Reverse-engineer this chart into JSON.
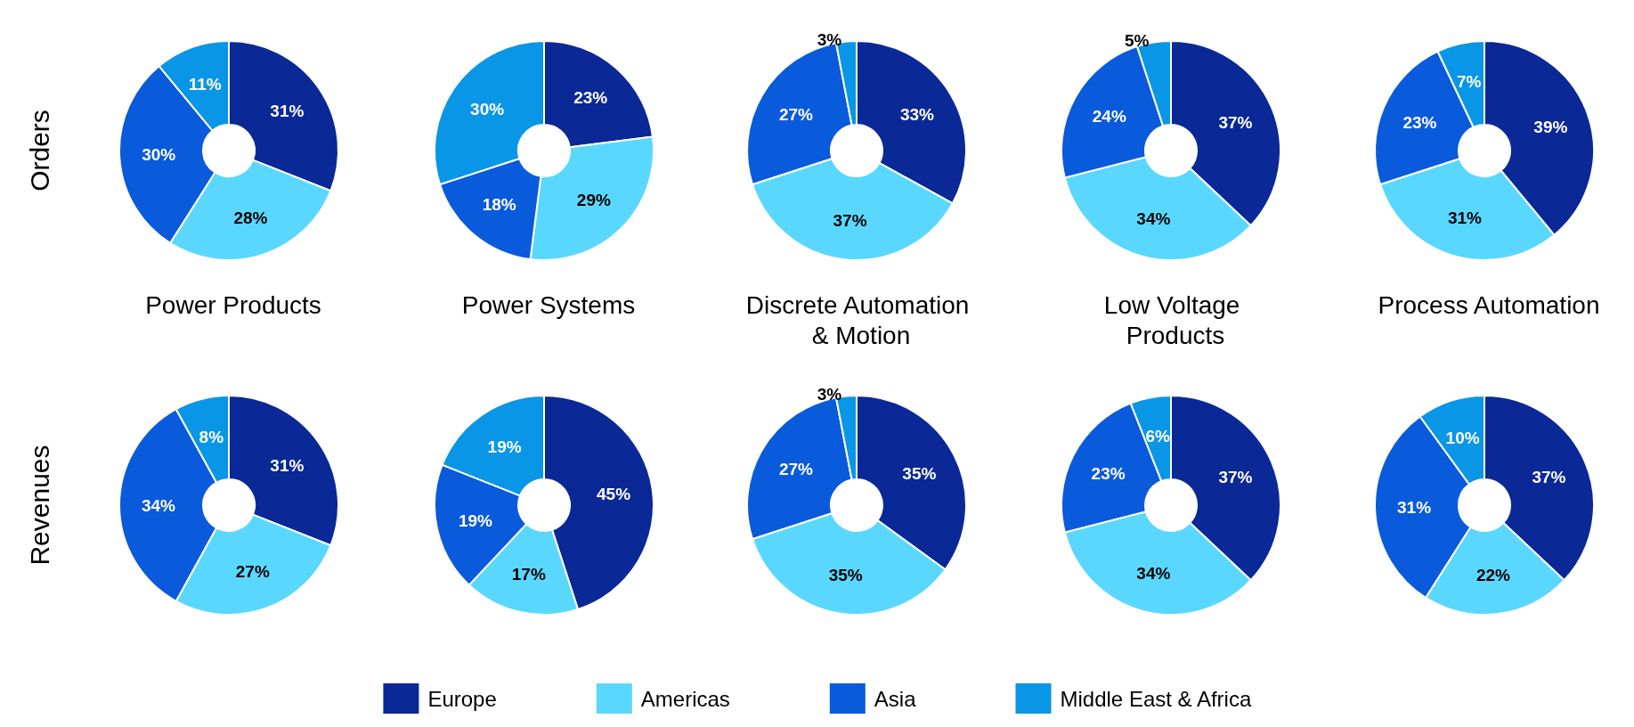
{
  "chart_data": [
    {
      "type": "donut",
      "title": "Power Products",
      "ylabel": "Orders",
      "categories": [
        "Europe",
        "Americas",
        "Asia",
        "Middle East & Africa"
      ],
      "values": [
        31,
        28,
        30,
        11
      ],
      "value_labels": [
        "31%",
        "28%",
        "30%",
        "11%"
      ],
      "colors": [
        "#0a2896",
        "#5ad7ff",
        "#0a5adc",
        "#0a96e6"
      ],
      "legend": "bottom"
    },
    {
      "type": "donut",
      "title": "Power Systems",
      "categories": [
        null,
        null,
        null,
        null
      ],
      "values": [
        23,
        29,
        18,
        30
      ],
      "value_labels": [
        "23%",
        "29%",
        "18%",
        "30%"
      ],
      "colors": [
        "#0a2896",
        "#5ad7ff",
        "#0a5adc",
        "#0a96e6"
      ]
    },
    {
      "type": "donut",
      "title": "Discrete Automation & Motion",
      "categories": [
        null,
        null,
        null,
        null
      ],
      "values": [
        33,
        37,
        27,
        3
      ],
      "value_labels": [
        "33%",
        "37%",
        "27%",
        "3%"
      ],
      "colors": [
        "#0a2896",
        "#5ad7ff",
        "#0a5adc",
        "#0a96e6"
      ]
    },
    {
      "type": "donut",
      "title": "Low Voltage Products",
      "categories": [
        null,
        null,
        null,
        null
      ],
      "values": [
        37,
        34,
        24,
        5
      ],
      "value_labels": [
        "37%",
        "34%",
        "24%",
        "5%"
      ],
      "colors": [
        "#0a2896",
        "#5ad7ff",
        "#0a5adc",
        "#0a96e6"
      ]
    },
    {
      "type": "donut",
      "title": "Process Automation",
      "categories": [
        null,
        null,
        null,
        null
      ],
      "values": [
        39,
        31,
        23,
        7
      ],
      "value_labels": [
        "39%",
        "31%",
        "23%",
        "7%"
      ],
      "colors": [
        "#0a2896",
        "#5ad7ff",
        "#0a5adc",
        "#0a96e6"
      ]
    },
    {
      "type": "donut",
      "ylabel": "Revenues",
      "categories": [
        null,
        null,
        null,
        null
      ],
      "values": [
        31,
        27,
        34,
        8
      ],
      "value_labels": [
        "31%",
        "27%",
        "34%",
        "8%"
      ],
      "colors": [
        "#0a2896",
        "#5ad7ff",
        "#0a5adc",
        "#0a96e6"
      ]
    },
    {
      "type": "donut",
      "categories": [
        null,
        null,
        null,
        null
      ],
      "values": [
        45,
        17,
        19,
        19
      ],
      "value_labels": [
        "45%",
        "17%",
        "19%",
        "19%"
      ],
      "colors": [
        "#0a2896",
        "#5ad7ff",
        "#0a5adc",
        "#0a96e6"
      ]
    },
    {
      "type": "donut",
      "categories": [
        null,
        null,
        null,
        null
      ],
      "values": [
        35,
        35,
        27,
        3
      ],
      "value_labels": [
        "35%",
        "35%",
        "27%",
        "3%"
      ],
      "colors": [
        "#0a2896",
        "#5ad7ff",
        "#0a5adc",
        "#0a96e6"
      ]
    },
    {
      "type": "donut",
      "categories": [
        null,
        null,
        null,
        null
      ],
      "values": [
        37,
        34,
        23,
        6
      ],
      "value_labels": [
        "37%",
        "34%",
        "23%",
        "6%"
      ],
      "colors": [
        "#0a2896",
        "#5ad7ff",
        "#0a5adc",
        "#0a96e6"
      ]
    },
    {
      "type": "donut",
      "categories": [
        null,
        null,
        null,
        null
      ],
      "values": [
        37,
        22,
        31,
        10
      ],
      "value_labels": [
        "37%",
        "22%",
        "31%",
        "10%"
      ],
      "colors": [
        "#0a2896",
        "#5ad7ff",
        "#0a5adc",
        "#0a96e6"
      ]
    }
  ]
}
